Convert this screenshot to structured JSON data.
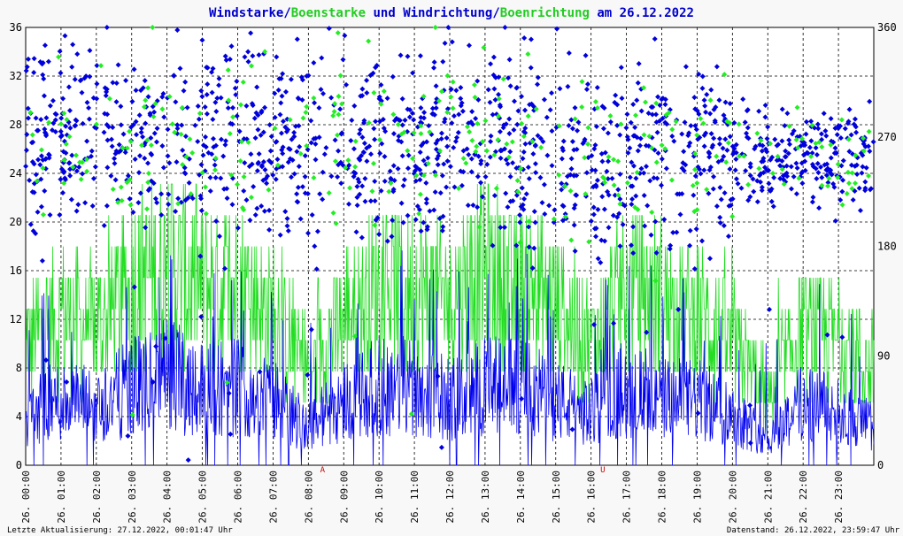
{
  "chart_data": {
    "type": "scatter",
    "title_parts": [
      {
        "text": "Windstarke",
        "color": "#0000cc"
      },
      {
        "text": "/",
        "color": "#0000cc"
      },
      {
        "text": "Boenstarke",
        "color": "#22cc22"
      },
      {
        "text": " und ",
        "color": "#0000cc"
      },
      {
        "text": "Windrichtung",
        "color": "#0000cc"
      },
      {
        "text": "/",
        "color": "#0000cc"
      },
      {
        "text": "Boenrichtung",
        "color": "#22cc22"
      },
      {
        "text": " am 26.12.2022",
        "color": "#0000cc"
      }
    ],
    "y_left": {
      "min": 0,
      "max": 36,
      "ticks": [
        "0",
        "4",
        "8",
        "12",
        "16",
        "20",
        "24",
        "28",
        "32",
        "36"
      ]
    },
    "y_right": {
      "min": 0,
      "max": 360,
      "ticks": [
        "0",
        "90",
        "180",
        "270",
        "360"
      ]
    },
    "x_ticks": [
      "26. 00:00",
      "26. 01:00",
      "26. 02:00",
      "26. 03:00",
      "26. 04:00",
      "26. 05:00",
      "26. 06:00",
      "26. 07:00",
      "26. 08:00",
      "26. 09:00",
      "26. 10:00",
      "26. 11:00",
      "26. 12:00",
      "26. 13:00",
      "26. 14:00",
      "26. 15:00",
      "26. 16:00",
      "26. 17:00",
      "26. 18:00",
      "26. 19:00",
      "26. 20:00",
      "26. 21:00",
      "26. 22:00",
      "26. 23:00"
    ],
    "markers": [
      {
        "label": "A",
        "hour": 8.4
      },
      {
        "label": "U",
        "hour": 16.33
      }
    ],
    "series": [
      {
        "key": "windstarke",
        "color": "#0000ee",
        "style": "line",
        "axis": "left",
        "profile": [
          {
            "h": 0,
            "m": 4
          },
          {
            "h": 1,
            "m": 5
          },
          {
            "h": 2,
            "m": 4.5
          },
          {
            "h": 3,
            "m": 6
          },
          {
            "h": 4,
            "m": 7
          },
          {
            "h": 5,
            "m": 6
          },
          {
            "h": 6,
            "m": 6
          },
          {
            "h": 7,
            "m": 5
          },
          {
            "h": 8,
            "m": 3
          },
          {
            "h": 9,
            "m": 5
          },
          {
            "h": 10,
            "m": 6
          },
          {
            "h": 11,
            "m": 6
          },
          {
            "h": 12,
            "m": 5
          },
          {
            "h": 13,
            "m": 6
          },
          {
            "h": 14,
            "m": 6
          },
          {
            "h": 15,
            "m": 5
          },
          {
            "h": 16,
            "m": 4
          },
          {
            "h": 17,
            "m": 6
          },
          {
            "h": 18,
            "m": 5
          },
          {
            "h": 19,
            "m": 5
          },
          {
            "h": 20,
            "m": 4
          },
          {
            "h": 21,
            "m": 2
          },
          {
            "h": 22,
            "m": 5
          },
          {
            "h": 23,
            "m": 4
          },
          {
            "h": 24,
            "m": 3
          }
        ]
      },
      {
        "key": "boenstarke",
        "color": "#22dd22",
        "style": "line",
        "axis": "left",
        "profile": [
          {
            "h": 0,
            "m": 9
          },
          {
            "h": 1,
            "m": 11
          },
          {
            "h": 2,
            "m": 10
          },
          {
            "h": 3,
            "m": 13
          },
          {
            "h": 4,
            "m": 15
          },
          {
            "h": 5,
            "m": 13
          },
          {
            "h": 6,
            "m": 13
          },
          {
            "h": 7,
            "m": 11
          },
          {
            "h": 8,
            "m": 7
          },
          {
            "h": 9,
            "m": 11
          },
          {
            "h": 10,
            "m": 13
          },
          {
            "h": 11,
            "m": 13
          },
          {
            "h": 12,
            "m": 12
          },
          {
            "h": 13,
            "m": 14
          },
          {
            "h": 14,
            "m": 13
          },
          {
            "h": 15,
            "m": 12
          },
          {
            "h": 16,
            "m": 9
          },
          {
            "h": 17,
            "m": 13
          },
          {
            "h": 18,
            "m": 12
          },
          {
            "h": 19,
            "m": 11
          },
          {
            "h": 20,
            "m": 9
          },
          {
            "h": 21,
            "m": 5
          },
          {
            "h": 22,
            "m": 10
          },
          {
            "h": 23,
            "m": 9
          },
          {
            "h": 24,
            "m": 7
          }
        ]
      },
      {
        "key": "windrichtung",
        "color": "#0000dd",
        "style": "diamond",
        "axis": "right",
        "count": 1400,
        "profile": [
          {
            "h": 0,
            "m": 270
          },
          {
            "h": 6,
            "m": 265
          },
          {
            "h": 12,
            "m": 268
          },
          {
            "h": 16,
            "m": 250
          },
          {
            "h": 20,
            "m": 255
          },
          {
            "h": 24,
            "m": 255
          }
        ]
      },
      {
        "key": "boenrichtung",
        "color": "#22ee22",
        "style": "diamond",
        "axis": "right",
        "count": 300,
        "profile": [
          {
            "h": 0,
            "m": 270
          },
          {
            "h": 6,
            "m": 265
          },
          {
            "h": 12,
            "m": 268
          },
          {
            "h": 16,
            "m": 250
          },
          {
            "h": 20,
            "m": 255
          },
          {
            "h": 24,
            "m": 255
          }
        ]
      }
    ]
  },
  "footer": {
    "last_update": "Letzte Aktualisierung: 27.12.2022, 00:01:47 Uhr",
    "data_state": "Datenstand: 26.12.2022, 23:59:47 Uhr"
  }
}
